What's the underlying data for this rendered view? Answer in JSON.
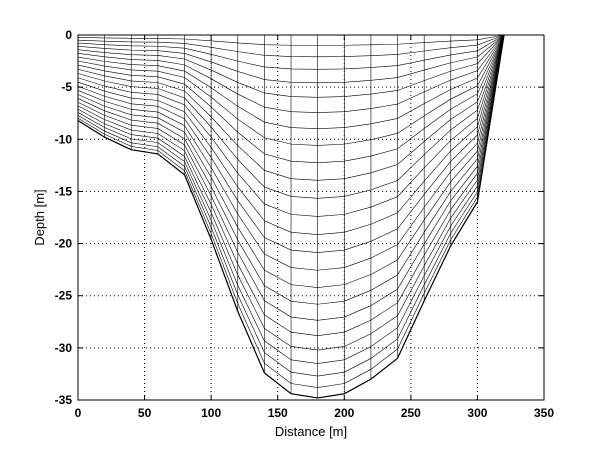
{
  "chart_data": {
    "type": "line",
    "title": "",
    "xlabel": "Distance [m]",
    "ylabel": "Depth [m]",
    "xlim": [
      0,
      350
    ],
    "ylim": [
      -35,
      0
    ],
    "x_ticks": [
      0,
      50,
      100,
      150,
      200,
      250,
      300,
      350
    ],
    "y_ticks": [
      0,
      -5,
      -10,
      -15,
      -20,
      -25,
      -30,
      -35
    ],
    "x_tick_labels": [
      "0",
      "50",
      "100",
      "150",
      "200",
      "250",
      "300",
      "350"
    ],
    "y_tick_labels": [
      "0",
      "-5",
      "-10",
      "-15",
      "-20",
      "-25",
      "-30",
      "-35"
    ],
    "grid": true,
    "layers": 24,
    "bed_profile": {
      "x": [
        0,
        20,
        40,
        60,
        80,
        100,
        120,
        140,
        160,
        180,
        200,
        220,
        240,
        260,
        280,
        300,
        320
      ],
      "depth": [
        -8.2,
        -9.8,
        -11.0,
        -11.4,
        -13.4,
        -19.6,
        -26.5,
        -32.4,
        -34.4,
        -34.8,
        -34.4,
        -33.0,
        -31.0,
        -25.5,
        -20.2,
        -16.0,
        0
      ]
    }
  }
}
